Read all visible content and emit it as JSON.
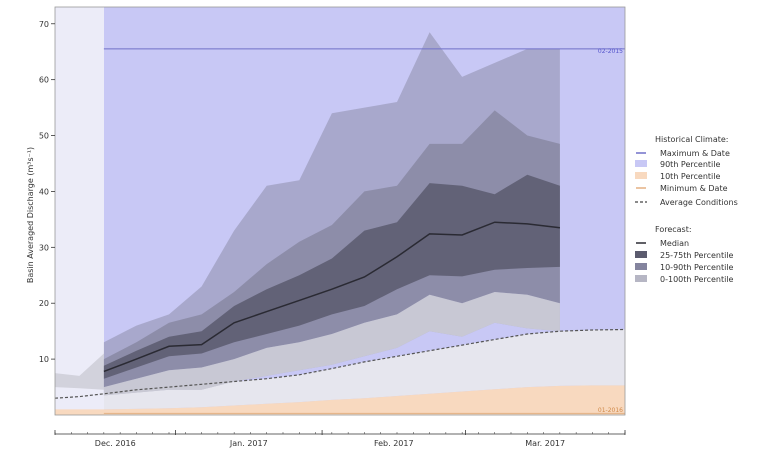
{
  "chart_data": {
    "type": "area",
    "title": "",
    "xlabel": "",
    "ylabel": "Basin Averaged Discharge (m³s⁻¹)",
    "ylim": [
      0,
      73
    ],
    "yticks": [
      10,
      20,
      30,
      40,
      50,
      60,
      70
    ],
    "grid": false,
    "x_months": [
      "Dec. 2016",
      "Jan. 2017",
      "Feb. 2017",
      "Mar. 2017"
    ],
    "x_points": [
      -1.5,
      -0.75,
      0,
      1,
      2,
      3,
      4,
      5,
      6,
      7,
      8,
      9,
      10,
      11,
      12,
      13,
      14,
      15,
      16
    ],
    "historical_climate": {
      "heading": "Historical Climate:",
      "maximum_label": "Maximum & Date",
      "maximum_value": 65.5,
      "maximum_date_label": "02-2015",
      "minimum_label": "Minimum & Date",
      "minimum_value": 0.3,
      "minimum_date_label": "01-2016",
      "p90_label": "90th Percentile",
      "p10_label": "10th Percentile",
      "average_label": "Average Conditions",
      "p10_values": [
        1.0,
        1.0,
        1.0,
        1.1,
        1.2,
        1.4,
        1.7,
        2.0,
        2.3,
        2.7,
        3.0,
        3.4,
        3.8,
        4.2,
        4.6,
        5.0,
        5.2,
        5.3,
        5.3
      ],
      "average_values": [
        3.0,
        3.3,
        3.8,
        4.5,
        5.0,
        5.5,
        6.0,
        6.5,
        7.2,
        8.3,
        9.5,
        10.5,
        11.5,
        12.5,
        13.5,
        14.5,
        15.0,
        15.2,
        15.3
      ]
    },
    "forecast": {
      "heading": "Forecast:",
      "median_label": "Median",
      "p25_75_label": "25-75th Percentile",
      "p10_90_label": "10-90th Percentile",
      "p0_100_label": "0-100th Percentile",
      "median": [
        7.8,
        10.0,
        12.3,
        12.6,
        16.5,
        18.5,
        20.5,
        22.5,
        24.7,
        28.3,
        32.4,
        32.2,
        34.5,
        34.2,
        33.5
      ],
      "p25": [
        6.5,
        8.5,
        10.5,
        11.0,
        13.0,
        14.5,
        16.0,
        18.0,
        19.5,
        22.5,
        25.0,
        24.8,
        26.0,
        26.3,
        26.5
      ],
      "p75": [
        8.8,
        11.5,
        14.0,
        15.0,
        19.5,
        22.5,
        25.0,
        28.0,
        33.0,
        34.5,
        41.5,
        41.0,
        39.5,
        43.0,
        41.0
      ],
      "p10": [
        5.0,
        6.5,
        8.0,
        8.5,
        10.0,
        12.0,
        13.0,
        14.5,
        16.5,
        18.0,
        21.5,
        20.0,
        22.0,
        21.5,
        20.0
      ],
      "p90": [
        10.0,
        13.0,
        16.5,
        18.0,
        22.0,
        27.0,
        31.0,
        34.0,
        40.0,
        41.0,
        48.5,
        48.5,
        54.5,
        50.0,
        48.5
      ],
      "min": [
        3.5,
        4.0,
        4.5,
        4.5,
        6.0,
        7.0,
        8.0,
        9.0,
        10.5,
        12.0,
        15.0,
        14.0,
        16.5,
        15.5,
        15.0
      ],
      "max": [
        13.0,
        16.0,
        18.0,
        23.0,
        33.0,
        41.0,
        42.0,
        54.0,
        55.0,
        56.0,
        68.5,
        60.5,
        63.0,
        65.5,
        65.5
      ]
    },
    "history": {
      "x": [
        -1.5,
        -0.75,
        0
      ],
      "min": [
        5.0,
        4.8,
        4.5
      ],
      "max": [
        7.5,
        7.0,
        11.0
      ]
    },
    "legend_position": "right"
  },
  "colors": {
    "p90_fill": "#c8c8f5",
    "observed_fill": "#ececf8",
    "max_line": "#7070c8",
    "p10_fill": "#f8d9bf",
    "min_line": "#e4b083",
    "fan_0_100": "#9e9ebe",
    "fan_10_90": "#84849e",
    "fan_25_75": "#5b5b6e",
    "median": "#2a2a33",
    "lower_area": "#cfcfd6",
    "axis": "#333333"
  }
}
